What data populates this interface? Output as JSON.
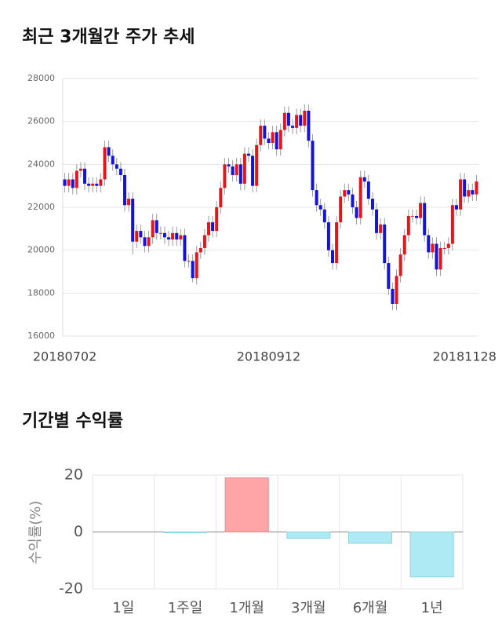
{
  "chart_data": [
    {
      "type": "candlestick",
      "title": "최근 3개월간 주가 추세",
      "categories": [
        "20180702",
        null,
        null,
        null,
        null,
        null,
        null,
        null,
        null,
        null,
        null,
        null,
        null,
        null,
        null,
        null,
        null,
        null,
        null,
        null,
        null,
        null,
        null,
        null,
        null,
        null,
        null,
        null,
        null,
        null,
        null,
        null,
        null,
        null,
        null,
        null,
        null,
        null,
        null,
        null,
        null,
        null,
        null,
        null,
        null,
        null,
        null,
        null,
        null,
        null,
        null,
        "20180912",
        null,
        null,
        null,
        null,
        null,
        null,
        null,
        null,
        null,
        null,
        null,
        null,
        null,
        null,
        null,
        null,
        null,
        null,
        null,
        null,
        null,
        null,
        null,
        null,
        null,
        null,
        null,
        null,
        null,
        null,
        null,
        null,
        null,
        null,
        null,
        null,
        null,
        null,
        null,
        null,
        null,
        null,
        null,
        null,
        null,
        null,
        null,
        null,
        "20181128",
        null,
        null,
        null
      ],
      "open": [
        23300,
        23000,
        23300,
        22900,
        23700,
        23800,
        23100,
        23000,
        23100,
        23000,
        23300,
        24800,
        24400,
        24000,
        23800,
        23500,
        22100,
        22400,
        20400,
        20900,
        20600,
        20200,
        20600,
        21400,
        20800,
        20800,
        20600,
        20500,
        20800,
        20500,
        20700,
        19500,
        19500,
        18700,
        19900,
        20100,
        20700,
        21300,
        20900,
        22000,
        22900,
        24000,
        23900,
        23500,
        24000,
        23100,
        24500,
        24400,
        23000,
        24900,
        25800,
        25200,
        25000,
        25500,
        24700,
        25600,
        26400,
        25800,
        25700,
        26300,
        25800,
        26500,
        25100,
        22800,
        22100,
        21900,
        21300,
        20000,
        19400,
        21300,
        22500,
        22800,
        22600,
        22000,
        21500,
        23400,
        23200,
        22400,
        21900,
        20800,
        21200,
        19400,
        18200,
        17500,
        18800,
        19800,
        20700,
        21600,
        21600,
        21500,
        22200,
        20700,
        19900,
        20300,
        19100,
        20100,
        20100,
        20300,
        22100,
        21900,
        23300,
        22500,
        22800,
        22600
      ],
      "high": [
        23600,
        23600,
        23600,
        24000,
        24100,
        24100,
        23400,
        23400,
        23400,
        23600,
        25100,
        25100,
        24700,
        24300,
        24100,
        23800,
        22700,
        22700,
        21200,
        21200,
        20900,
        20900,
        21700,
        21700,
        21100,
        21100,
        20900,
        21100,
        21100,
        21000,
        21000,
        19800,
        19800,
        20200,
        20400,
        21000,
        21600,
        21600,
        22300,
        23200,
        24300,
        24300,
        24200,
        24300,
        24300,
        24800,
        24800,
        24700,
        25200,
        26100,
        26100,
        25500,
        25800,
        25800,
        25900,
        26700,
        26700,
        26100,
        26600,
        26600,
        26800,
        26800,
        25400,
        23100,
        22400,
        22200,
        21600,
        20300,
        21600,
        22800,
        23100,
        23100,
        22900,
        22300,
        23700,
        23700,
        23500,
        22700,
        22200,
        21500,
        21500,
        19700,
        18500,
        19100,
        20100,
        21000,
        21900,
        21900,
        21900,
        22500,
        22500,
        21000,
        20600,
        20600,
        20400,
        20400,
        20600,
        22400,
        22400,
        23600,
        23600,
        23100,
        23100,
        23500
      ],
      "low": [
        22700,
        22700,
        22600,
        22600,
        23400,
        22800,
        22700,
        22700,
        22700,
        22700,
        23000,
        24100,
        23700,
        23500,
        23200,
        21800,
        21800,
        19800,
        20100,
        20300,
        19900,
        19900,
        20300,
        20500,
        20500,
        20300,
        20200,
        20200,
        20200,
        20200,
        19200,
        19200,
        18500,
        18400,
        19600,
        19800,
        20400,
        20600,
        20600,
        21700,
        22600,
        23600,
        23200,
        23200,
        22800,
        22800,
        24100,
        22700,
        22700,
        24600,
        24900,
        24700,
        24700,
        24400,
        24400,
        25300,
        25500,
        25400,
        25400,
        25500,
        25500,
        24800,
        22500,
        21800,
        21600,
        21000,
        19700,
        19100,
        19100,
        21000,
        22200,
        22300,
        21700,
        21200,
        21200,
        22900,
        22100,
        21600,
        20500,
        20500,
        19100,
        17900,
        17200,
        17200,
        18500,
        19500,
        20400,
        21300,
        21200,
        21200,
        20400,
        19600,
        19600,
        18800,
        18800,
        19800,
        19800,
        20000,
        21600,
        21600,
        22200,
        22200,
        22300,
        22300
      ],
      "close": [
        23000,
        23300,
        22900,
        23700,
        23800,
        23100,
        23000,
        23100,
        23000,
        23300,
        24800,
        24400,
        24000,
        23800,
        23500,
        22100,
        22400,
        20400,
        20900,
        20600,
        20200,
        20600,
        21400,
        20800,
        20800,
        20600,
        20500,
        20800,
        20500,
        20700,
        19500,
        19500,
        18700,
        19900,
        20100,
        20700,
        21300,
        20900,
        22000,
        22900,
        24000,
        23900,
        23500,
        24000,
        23100,
        24500,
        24400,
        23000,
        24900,
        25800,
        25200,
        25000,
        25500,
        24700,
        25600,
        26400,
        25800,
        25700,
        26300,
        25800,
        26500,
        25100,
        22800,
        22100,
        21900,
        21300,
        20000,
        19400,
        21300,
        22500,
        22800,
        22600,
        22000,
        21500,
        23400,
        23200,
        22400,
        21900,
        20800,
        21200,
        19400,
        18200,
        17500,
        18800,
        19800,
        20700,
        21600,
        21600,
        21500,
        22200,
        20700,
        19900,
        20300,
        19100,
        20100,
        20100,
        20300,
        22100,
        21900,
        23300,
        22500,
        22800,
        22600,
        23200
      ],
      "up_color": "#e0171f",
      "down_color": "#1414d2",
      "ylim": [
        16000,
        28000
      ],
      "yticks": [
        16000,
        18000,
        20000,
        22000,
        24000,
        26000,
        28000
      ],
      "grid": true
    },
    {
      "type": "bar",
      "title": "기간별 수익률",
      "y_label": "수익률(%)",
      "categories": [
        "1일",
        "1주일",
        "1개월",
        "3개월",
        "6개월",
        "1년"
      ],
      "values": [
        0,
        -0.3,
        19,
        -2.2,
        -4.0,
        -15.8
      ],
      "positive_color": "#ffa5a8",
      "negative_color": "#aeeaf3",
      "ylim": [
        -20,
        20
      ],
      "yticks": [
        -20,
        0,
        20
      ],
      "grid": true
    }
  ]
}
